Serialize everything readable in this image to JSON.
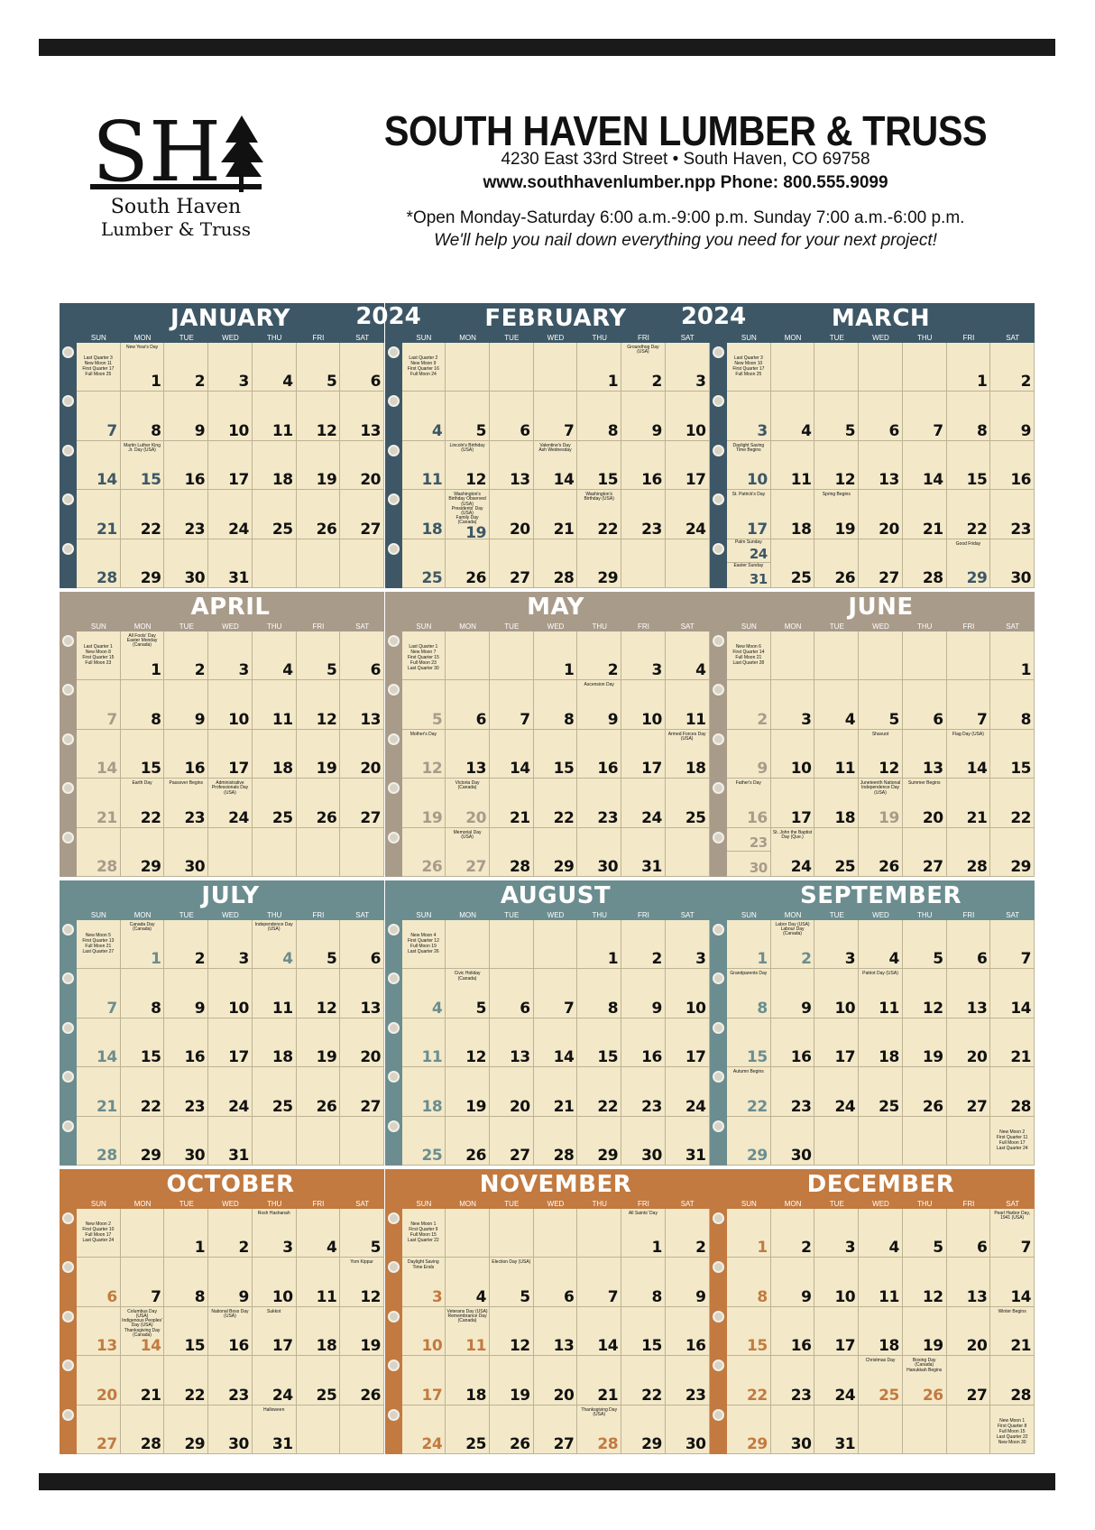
{
  "company": {
    "name": "SOUTH HAVEN LUMBER & TRUSS",
    "address": "4230 East 33rd Street  •  South Haven, CO 69758",
    "web_phone": "www.southhavenlumber.npp   Phone: 800.555.9099",
    "hours": "*Open Monday-Saturday 6:00 a.m.-9:00 p.m. Sunday 7:00 a.m.-6:00 p.m.",
    "tagline": "We'll help you nail down everything you need for your next project!",
    "logo_letters": "SH",
    "logo_text": [
      "South Haven",
      "Lumber & Truss"
    ]
  },
  "year": "2024",
  "weekdays": [
    "SUN",
    "MON",
    "TUE",
    "WED",
    "THU",
    "FRI",
    "SAT"
  ],
  "quarter_colors": [
    "#3d5766",
    "#a99b89",
    "#6b8d8f",
    "#c27a40"
  ],
  "months": [
    {
      "name": "JANUARY",
      "first": 1,
      "days": 31,
      "moon": "Last Quarter 3\nNew Moon 11\nFirst Quarter 17\nFull Moon 25",
      "holidays": {
        "1": "New Year's Day",
        "15": "Martin Luther King Jr. Day (USA)"
      },
      "hl": [
        15
      ]
    },
    {
      "name": "FEBRUARY",
      "first": 4,
      "days": 29,
      "moon": "Last Quarter 2\nNew Moon 9\nFirst Quarter 16\nFull Moon 24",
      "holidays": {
        "2": "Groundhog Day (USA)",
        "12": "Lincoln's Birthday (USA)",
        "14": "Valentine's Day\nAsh Wednesday",
        "19": "Washington's Birthday Observed (USA)\nPresidents' Day (USA)\nFamily Day (Canada)",
        "22": "Washington's Birthday (USA)"
      },
      "hl": [
        19
      ]
    },
    {
      "name": "MARCH",
      "first": 5,
      "days": 31,
      "moon": "Last Quarter 3\nNew Moon 10\nFirst Quarter 17\nFull Moon 25",
      "holidays": {
        "10": "Daylight Saving Time Begins",
        "17": "St. Patrick's Day",
        "19": "Spring Begins",
        "24": "Palm Sunday",
        "29": "Good Friday",
        "31": "Easter Sunday"
      },
      "hl": [
        29
      ]
    },
    {
      "name": "APRIL",
      "first": 1,
      "days": 30,
      "moon": "Last Quarter 1\nNew Moon 8\nFirst Quarter 15\nFull Moon 23",
      "holidays": {
        "1": "All Fools' Day\nEaster Monday (Canada)",
        "22": "Earth Day",
        "23": "Passover Begins",
        "24": "Administrative Professionals Day (USA)"
      },
      "hl": []
    },
    {
      "name": "MAY",
      "first": 3,
      "days": 31,
      "moon": "Last Quarter 1\nNew Moon 7\nFirst Quarter 15\nFull Moon 23\nLast Quarter 30",
      "holidays": {
        "9": "Ascension Day",
        "12": "Mother's Day",
        "18": "Armed Forces Day (USA)",
        "20": "Victoria Day (Canada)",
        "27": "Memorial Day (USA)"
      },
      "hl": [
        20,
        27
      ]
    },
    {
      "name": "JUNE",
      "first": 6,
      "days": 30,
      "moon": "New Moon 6\nFirst Quarter 14\nFull Moon 21\nLast Quarter 28",
      "holidays": {
        "12": "Shavuot",
        "14": "Flag Day (USA)",
        "16": "Father's Day",
        "19": "Juneteenth National Independence Day (USA)",
        "20": "Summer Begins",
        "24": "St. John the Baptist Day (Que.)"
      },
      "hl": [
        19
      ]
    },
    {
      "name": "JULY",
      "first": 1,
      "days": 31,
      "moon": "New Moon 5\nFirst Quarter 13\nFull Moon 21\nLast Quarter 27",
      "holidays": {
        "1": "Canada Day (Canada)",
        "4": "Independence Day (USA)"
      },
      "hl": [
        1,
        4
      ]
    },
    {
      "name": "AUGUST",
      "first": 4,
      "days": 31,
      "moon": "New Moon 4\nFirst Quarter 12\nFull Moon 19\nLast Quarter 26",
      "holidays": {
        "5": "Civic Holiday (Canada)"
      },
      "hl": []
    },
    {
      "name": "SEPTEMBER",
      "first": 0,
      "days": 30,
      "moon": "New Moon 2\nFirst Quarter 11\nFull Moon 17\nLast Quarter 24",
      "holidays": {
        "2": "Labor Day (USA)\nLabour Day (Canada)",
        "8": "Grandparents Day",
        "11": "Patriot Day (USA)",
        "22": "Autumn Begins"
      },
      "hl": [
        2
      ]
    },
    {
      "name": "OCTOBER",
      "first": 2,
      "days": 31,
      "moon": "New Moon 2\nFirst Quarter 10\nFull Moon 17\nLast Quarter 24",
      "holidays": {
        "3": "Rosh Hashanah",
        "12": "Yom Kippur",
        "14": "Columbus Day (USA)\nIndigenous Peoples' Day (USA)\nThanksgiving Day (Canada)",
        "16": "National Boss Day (USA)",
        "17": "Sukkot",
        "31": "Halloween"
      },
      "hl": [
        14
      ]
    },
    {
      "name": "NOVEMBER",
      "first": 5,
      "days": 30,
      "moon": "New Moon 1\nFirst Quarter 9\nFull Moon 15\nLast Quarter 22",
      "holidays": {
        "1": "All Saints' Day",
        "3": "Daylight Saving Time Ends",
        "5": "Election Day (USA)",
        "11": "Veterans Day (USA)\nRemembrance Day (Canada)",
        "28": "Thanksgiving Day (USA)"
      },
      "hl": [
        11,
        28
      ]
    },
    {
      "name": "DECEMBER",
      "first": 0,
      "days": 31,
      "moon": "New Moon 1\nFirst Quarter 8\nFull Moon 15\nLast Quarter 22\nNew Moon 30",
      "holidays": {
        "7": "Pearl Harbor Day, 1941 (USA)",
        "21": "Winter Begins",
        "25": "Christmas Day",
        "26": "Boxing Day (Canada)\nHanukkah Begins"
      },
      "hl": [
        25,
        26
      ]
    }
  ]
}
